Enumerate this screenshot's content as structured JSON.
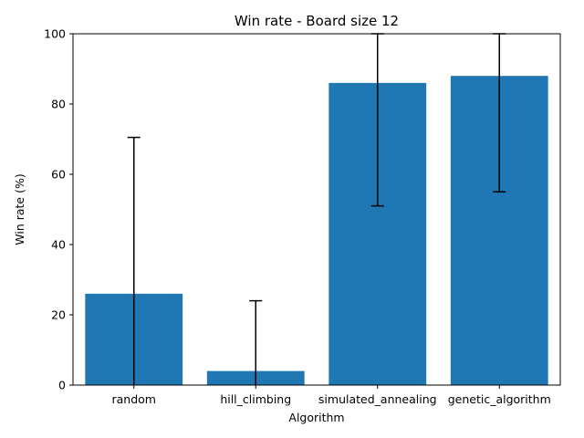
{
  "chart_data": {
    "type": "bar",
    "title": "Win rate - Board size 12",
    "xlabel": "Algorithm",
    "ylabel": "Win rate (%)",
    "categories": [
      "random",
      "hill_climbing",
      "simulated_annealing",
      "genetic_algorithm"
    ],
    "values": [
      26,
      4,
      86,
      88
    ],
    "error_lower": [
      0,
      0,
      51,
      55
    ],
    "error_upper": [
      70.5,
      24,
      100,
      100
    ],
    "ylim": [
      0,
      100
    ],
    "yticks": [
      0,
      20,
      40,
      60,
      80,
      100
    ],
    "grid": false,
    "colors": {
      "bar": "#1f77b4",
      "error": "#000000"
    }
  }
}
